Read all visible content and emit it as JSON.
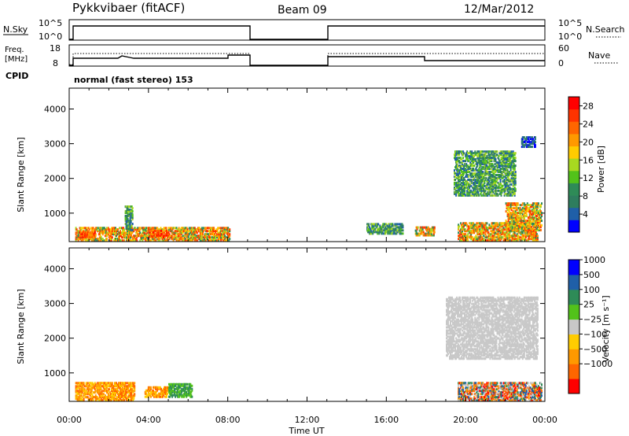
{
  "header": {
    "station": "Pykkvibaer (fitACF)",
    "beam": "Beam 09",
    "date": "12/Mar/2012"
  },
  "strips": {
    "nsky": {
      "label": "N.Sky",
      "ticks_left": [
        "10^5",
        "10^0"
      ],
      "ticks_right": [
        "10^5",
        "10^0"
      ],
      "right_label": "N.Search"
    },
    "freq": {
      "label_top": "Freq.",
      "label_bottom": "[MHz]",
      "ticks_left": [
        "18",
        "8"
      ],
      "ticks_right": [
        "60",
        "0"
      ],
      "right_label": "Nave"
    },
    "cpid": {
      "label": "CPID",
      "value": "normal (fast stereo) 153"
    }
  },
  "colors": {
    "power": [
      "#0000ff",
      "#1f5fa8",
      "#2e7d5e",
      "#2e8b57",
      "#52c21a",
      "#a8d820",
      "#ffcc00",
      "#ff9900",
      "#ff6600",
      "#ff3300",
      "#ff0000"
    ],
    "velocity": [
      "#ff0000",
      "#ff6600",
      "#ff9900",
      "#ffcc00",
      "#c8c8c8",
      "#52c21a",
      "#2e8b57",
      "#1f5fa8",
      "#0000ff"
    ]
  },
  "chart_data": [
    {
      "type": "heatmap",
      "title": "",
      "ylabel": "Slant Range [km]",
      "ylim": [
        180,
        4600
      ],
      "y_ticks": [
        "1000",
        "2000",
        "3000",
        "4000"
      ],
      "xlim": [
        "00:00",
        "24:00"
      ],
      "colorbar": {
        "label": "Power [dB]",
        "ticks": [
          "4",
          "8",
          "12",
          "16",
          "20",
          "24",
          "28"
        ],
        "range": [
          0,
          30
        ]
      },
      "regions": [
        {
          "start_h": 0.3,
          "end_h": 8.1,
          "range_min": 200,
          "range_max": 600,
          "level": "high"
        },
        {
          "start_h": 0.5,
          "end_h": 1.3,
          "range_min": 300,
          "range_max": 450,
          "level": "peak"
        },
        {
          "start_h": 2.8,
          "end_h": 3.2,
          "range_min": 500,
          "range_max": 1200,
          "level": "mid"
        },
        {
          "start_h": 4.0,
          "end_h": 5.0,
          "range_min": 300,
          "range_max": 500,
          "level": "peak"
        },
        {
          "start_h": 15.0,
          "end_h": 16.8,
          "range_min": 400,
          "range_max": 700,
          "level": "mid"
        },
        {
          "start_h": 17.4,
          "end_h": 18.4,
          "range_min": 350,
          "range_max": 600,
          "level": "high"
        },
        {
          "start_h": 19.6,
          "end_h": 23.6,
          "range_min": 200,
          "range_max": 700,
          "level": "high"
        },
        {
          "start_h": 19.4,
          "end_h": 22.5,
          "range_min": 1500,
          "range_max": 2800,
          "level": "mid"
        },
        {
          "start_h": 22.0,
          "end_h": 23.8,
          "range_min": 500,
          "range_max": 1300,
          "level": "high"
        },
        {
          "start_h": 22.8,
          "end_h": 23.5,
          "range_min": 2900,
          "range_max": 3200,
          "level": "low"
        }
      ]
    },
    {
      "type": "heatmap",
      "title": "",
      "ylabel": "Slant Range [km]",
      "xlabel": "Time UT",
      "ylim": [
        180,
        4600
      ],
      "y_ticks": [
        "1000",
        "2000",
        "3000",
        "4000"
      ],
      "x_ticks": [
        "00:00",
        "04:00",
        "08:00",
        "12:00",
        "16:00",
        "20:00",
        "00:00"
      ],
      "xlim": [
        "00:00",
        "24:00"
      ],
      "colorbar": {
        "label": "Velocity [m s⁻¹]",
        "ticks": [
          "1000",
          "500",
          "100",
          "25",
          "−25",
          "−100",
          "−500",
          "−1000"
        ]
      },
      "regions": [
        {
          "start_h": 0.3,
          "end_h": 3.3,
          "range_min": 200,
          "range_max": 700,
          "class": "negative"
        },
        {
          "start_h": 3.8,
          "end_h": 5.0,
          "range_min": 300,
          "range_max": 600,
          "class": "negative"
        },
        {
          "start_h": 5.0,
          "end_h": 6.2,
          "range_min": 300,
          "range_max": 700,
          "class": "positive"
        },
        {
          "start_h": 19.0,
          "end_h": 23.6,
          "range_min": 1400,
          "range_max": 3200,
          "class": "ground"
        },
        {
          "start_h": 19.6,
          "end_h": 23.8,
          "range_min": 200,
          "range_max": 700,
          "class": "mixed"
        }
      ]
    }
  ]
}
